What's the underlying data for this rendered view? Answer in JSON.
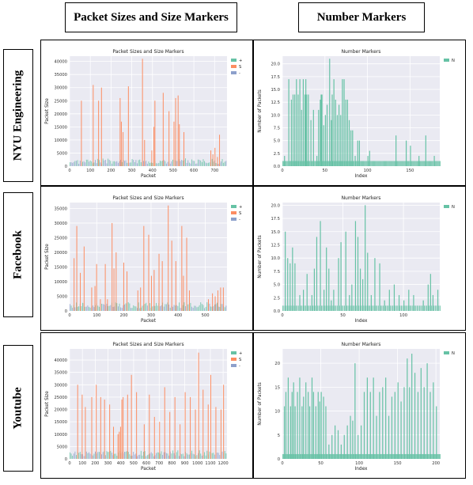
{
  "headers": {
    "left": "Packet Sizes and Size Markers",
    "right": "Number Markers"
  },
  "rows": [
    {
      "label": "NYU Engineering"
    },
    {
      "label": "Facebook"
    },
    {
      "label": "Youtube"
    }
  ],
  "colors": {
    "plus": "#66c2a5",
    "S": "#fc8d62",
    "minus": "#8da0cb",
    "N": "#66c2a5",
    "plot_bg": "#eaeaf2"
  },
  "chart_data": [
    {
      "type": "bar",
      "row": "NYU Engineering",
      "title": "Packet Sizes and Size Markers",
      "xlabel": "Packet",
      "ylabel": "Packet Size",
      "xlim": [
        0,
        760
      ],
      "ylim": [
        0,
        42000
      ],
      "xticks": [
        0,
        100,
        200,
        300,
        400,
        500,
        600,
        700
      ],
      "yticks": [
        0,
        5000,
        10000,
        15000,
        20000,
        25000,
        30000,
        35000,
        40000
      ],
      "legend": [
        "+",
        "S",
        "-"
      ],
      "legend_position": "top-right",
      "series": [
        {
          "name": "S",
          "x": [
            55,
            112,
            138,
            152,
            242,
            248,
            256,
            282,
            350,
            360,
            395,
            405,
            410,
            450,
            478,
            502,
            510,
            522,
            528,
            550,
            680,
            690,
            700,
            712,
            722
          ],
          "values": [
            25000,
            31000,
            25000,
            30000,
            26000,
            17000,
            13000,
            30500,
            41000,
            10000,
            6000,
            15000,
            25000,
            28000,
            21000,
            17000,
            26000,
            27000,
            16000,
            13000,
            6000,
            4500,
            7000,
            3500,
            12000
          ]
        },
        {
          "name": "+",
          "band": 3000
        },
        {
          "name": "-",
          "band": 2500
        }
      ]
    },
    {
      "type": "bar",
      "row": "NYU Engineering",
      "title": "Number Markers",
      "xlabel": "Index",
      "ylabel": "Number of Packets",
      "xlim": [
        0,
        185
      ],
      "ylim": [
        0,
        21.5
      ],
      "xticks": [
        0,
        50,
        100,
        150
      ],
      "yticks": [
        0.0,
        2.5,
        5.0,
        7.5,
        10.0,
        12.5,
        15.0,
        17.5,
        20.0
      ],
      "legend": [
        "N"
      ],
      "legend_position": "top-right",
      "series": [
        {
          "name": "N",
          "x": [
            2,
            7,
            10,
            12,
            14,
            16,
            18,
            20,
            22,
            24,
            26,
            27,
            28,
            30,
            33,
            36,
            40,
            42,
            44,
            45,
            46,
            48,
            50,
            52,
            55,
            57,
            58,
            60,
            62,
            64,
            66,
            68,
            70,
            72,
            74,
            76,
            78,
            80,
            82,
            85,
            88,
            90,
            100,
            102,
            133,
            145,
            150,
            160,
            168,
            178
          ],
          "values": [
            2,
            17,
            13,
            14,
            14,
            17,
            14,
            17,
            11,
            17,
            14,
            17,
            14,
            14,
            9,
            11,
            2,
            11,
            13,
            14,
            14,
            8,
            10,
            12,
            21,
            9,
            14,
            17,
            13,
            10,
            12,
            10,
            17,
            17,
            13,
            13,
            9,
            7,
            7,
            2,
            5,
            5,
            2,
            3,
            6,
            5,
            4,
            2,
            6,
            2
          ]
        }
      ]
    },
    {
      "type": "bar",
      "row": "Facebook",
      "title": "Packet Sizes and Size Markers",
      "xlabel": "Packet",
      "ylabel": "Packet Size",
      "xlim": [
        0,
        580
      ],
      "ylim": [
        0,
        37000
      ],
      "xticks": [
        0,
        100,
        200,
        300,
        400,
        500
      ],
      "yticks": [
        0,
        5000,
        10000,
        15000,
        20000,
        25000,
        30000,
        35000
      ],
      "legend": [
        "+",
        "S",
        "-"
      ],
      "legend_position": "top-right",
      "series": [
        {
          "name": "S",
          "x": [
            15,
            25,
            38,
            52,
            80,
            92,
            98,
            112,
            130,
            138,
            155,
            162,
            170,
            198,
            210,
            250,
            260,
            272,
            290,
            300,
            310,
            328,
            340,
            362,
            375,
            390,
            412,
            418,
            430,
            440,
            510,
            525,
            535,
            545,
            555,
            565
          ],
          "values": [
            18000,
            29000,
            13000,
            22000,
            8000,
            8500,
            16000,
            4000,
            16000,
            4000,
            30000,
            14500,
            20000,
            16500,
            13500,
            7000,
            8000,
            29000,
            26000,
            12000,
            14000,
            19500,
            17000,
            36000,
            24000,
            17000,
            29000,
            12000,
            25000,
            7000,
            4000,
            6000,
            5000,
            7000,
            8000,
            8000
          ]
        },
        {
          "name": "+",
          "band": 3000
        },
        {
          "name": "-",
          "band": 2500
        }
      ]
    },
    {
      "type": "bar",
      "row": "Facebook",
      "title": "Number Markers",
      "xlabel": "Index",
      "ylabel": "Number of Packets",
      "xlim": [
        0,
        130
      ],
      "ylim": [
        0,
        20.5
      ],
      "xticks": [
        0,
        50,
        100
      ],
      "yticks": [
        0.0,
        2.5,
        5.0,
        7.5,
        10.0,
        12.5,
        15.0,
        17.5,
        20.0
      ],
      "legend": [
        "N"
      ],
      "legend_position": "top-right",
      "series": [
        {
          "name": "N",
          "x": [
            2,
            4,
            6,
            8,
            10,
            14,
            17,
            20,
            24,
            26,
            28,
            31,
            34,
            36,
            38,
            40,
            42,
            46,
            48,
            52,
            55,
            57,
            60,
            62,
            64,
            66,
            68,
            70,
            73,
            76,
            80,
            84,
            88,
            92,
            96,
            100,
            104,
            108,
            116,
            120,
            122,
            124,
            128
          ],
          "values": [
            15,
            10,
            9,
            12,
            9,
            3,
            4,
            7,
            3,
            8,
            14,
            17,
            4,
            12,
            8,
            2,
            4,
            10,
            13,
            15,
            3,
            5,
            17,
            14,
            8,
            6,
            20,
            11,
            3,
            10,
            9,
            2,
            4,
            5,
            3,
            2,
            4,
            3,
            2,
            5,
            7,
            3,
            4
          ]
        }
      ]
    },
    {
      "type": "bar",
      "row": "Youtube",
      "title": "Packet Sizes and Size Markers",
      "xlabel": "Packet",
      "ylabel": "Packet Size",
      "xlim": [
        0,
        1230
      ],
      "ylim": [
        0,
        44500
      ],
      "xticks": [
        0,
        100,
        200,
        300,
        400,
        500,
        600,
        700,
        800,
        900,
        1000,
        1100,
        1200
      ],
      "yticks": [
        0,
        5000,
        10000,
        15000,
        20000,
        25000,
        30000,
        35000,
        40000
      ],
      "legend": [
        "+",
        "S",
        "-"
      ],
      "legend_position": "top-right",
      "series": [
        {
          "name": "S",
          "x": [
            60,
            95,
            120,
            170,
            205,
            240,
            270,
            310,
            340,
            375,
            385,
            395,
            405,
            415,
            450,
            480,
            520,
            580,
            620,
            660,
            700,
            740,
            780,
            820,
            860,
            900,
            940,
            980,
            1005,
            1040,
            1080,
            1100,
            1140,
            1180,
            1200
          ],
          "values": [
            30000,
            26000,
            21000,
            25000,
            30000,
            25000,
            24000,
            22000,
            13000,
            10000,
            11000,
            13000,
            24000,
            25000,
            26000,
            34000,
            27000,
            14000,
            26000,
            17000,
            15000,
            29000,
            19000,
            25000,
            14000,
            27000,
            25000,
            20000,
            43000,
            28000,
            22000,
            34000,
            21000,
            20000,
            30000
          ]
        },
        {
          "name": "+",
          "band": 3500
        },
        {
          "name": "-",
          "band": 3000
        }
      ]
    },
    {
      "type": "bar",
      "row": "Youtube",
      "title": "Number Markers",
      "xlabel": "Index",
      "ylabel": "Number of Packets",
      "xlim": [
        0,
        205
      ],
      "ylim": [
        0,
        23
      ],
      "xticks": [
        0,
        50,
        100,
        150,
        200
      ],
      "yticks": [
        0,
        5,
        10,
        15,
        20
      ],
      "legend": [
        "N"
      ],
      "legend_position": "top-right",
      "series": [
        {
          "name": "N",
          "x": [
            2,
            4,
            7,
            10,
            12,
            14,
            16,
            19,
            22,
            25,
            27,
            30,
            33,
            35,
            38,
            40,
            43,
            46,
            48,
            50,
            53,
            56,
            60,
            64,
            68,
            72,
            76,
            80,
            84,
            88,
            91,
            94,
            98,
            102,
            106,
            110,
            114,
            118,
            122,
            126,
            130,
            134,
            138,
            142,
            146,
            150,
            154,
            158,
            162,
            165,
            168,
            172,
            176,
            180,
            184,
            188,
            192,
            196,
            200
          ],
          "values": [
            11,
            14,
            17,
            11,
            14,
            16,
            11,
            14,
            17,
            11,
            13,
            16,
            14,
            11,
            17,
            14,
            11,
            14,
            12,
            14,
            13,
            11,
            3,
            5,
            7,
            6,
            3,
            5,
            7,
            9,
            8,
            20,
            5,
            7,
            14,
            17,
            14,
            17,
            9,
            14,
            15,
            17,
            9,
            13,
            14,
            16,
            12,
            15,
            21,
            15,
            22,
            18,
            14,
            19,
            15,
            20,
            14,
            16,
            11
          ]
        }
      ]
    }
  ]
}
